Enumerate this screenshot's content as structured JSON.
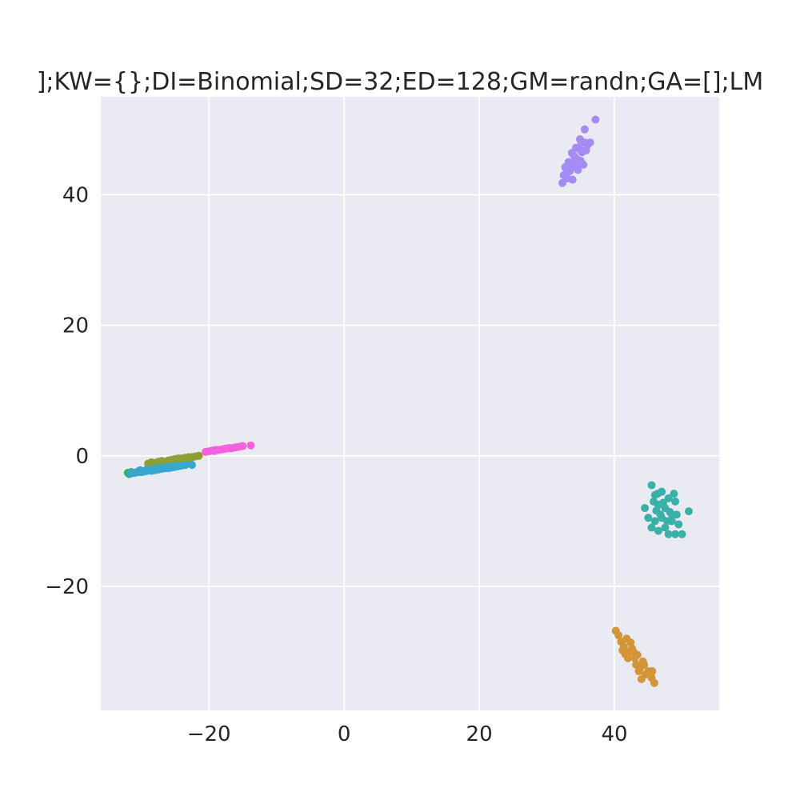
{
  "chart_data": {
    "type": "scatter",
    "title": "];KW={};DI=Binomial;SD=32;ED=128;GM=randn;GA=[];LM",
    "xlabel": "",
    "ylabel": "",
    "xlim": [
      -36,
      55.5
    ],
    "ylim": [
      -39,
      55
    ],
    "xticks": [
      -20,
      0,
      20,
      40
    ],
    "yticks": [
      -20,
      0,
      20,
      40
    ],
    "xtick_labels": [
      "−20",
      "0",
      "20",
      "40"
    ],
    "ytick_labels": [
      "−20",
      "0",
      "20",
      "40"
    ],
    "grid": true,
    "legend": "none",
    "colors": {
      "background": "#eaeaf2",
      "grid": "#ffffff",
      "text": "#262626"
    },
    "series": [
      {
        "color": "#a48cf4",
        "points": [
          [
            32.3,
            41.8
          ],
          [
            32.5,
            43.0
          ],
          [
            32.7,
            44.2
          ],
          [
            33.0,
            42.5
          ],
          [
            33.2,
            45.0
          ],
          [
            33.4,
            43.6
          ],
          [
            33.6,
            44.8
          ],
          [
            33.8,
            42.3
          ],
          [
            34.0,
            46.0
          ],
          [
            34.2,
            44.3
          ],
          [
            34.4,
            45.5
          ],
          [
            34.6,
            43.8
          ],
          [
            34.8,
            47.0
          ],
          [
            35.0,
            45.2
          ],
          [
            35.2,
            46.5
          ],
          [
            35.4,
            44.6
          ],
          [
            35.6,
            48.0
          ],
          [
            35.8,
            46.8
          ],
          [
            36.0,
            47.6
          ],
          [
            33.1,
            44.0
          ],
          [
            34.1,
            45.8
          ],
          [
            34.9,
            48.5
          ],
          [
            35.6,
            50.0
          ],
          [
            36.4,
            48.0
          ],
          [
            37.2,
            51.5
          ],
          [
            33.7,
            46.4
          ],
          [
            34.3,
            47.2
          ],
          [
            32.9,
            43.3
          ],
          [
            35.1,
            47.9
          ],
          [
            34.5,
            44.9
          ]
        ]
      },
      {
        "color": "#39b1a6",
        "points": [
          [
            45.5,
            -4.5
          ],
          [
            46.0,
            -6.0
          ],
          [
            46.5,
            -7.5
          ],
          [
            47.0,
            -5.5
          ],
          [
            47.5,
            -8.0
          ],
          [
            48.0,
            -6.5
          ],
          [
            48.5,
            -9.0
          ],
          [
            49.0,
            -7.0
          ],
          [
            49.5,
            -10.5
          ],
          [
            50.0,
            -12.0
          ],
          [
            51.0,
            -8.5
          ],
          [
            44.5,
            -8.0
          ],
          [
            45.0,
            -9.5
          ],
          [
            45.5,
            -11.0
          ],
          [
            46.0,
            -10.0
          ],
          [
            46.5,
            -11.5
          ],
          [
            47.0,
            -9.5
          ],
          [
            47.5,
            -11.0
          ],
          [
            48.0,
            -12.0
          ],
          [
            48.5,
            -10.0
          ],
          [
            49.0,
            -12.0
          ],
          [
            46.2,
            -8.4
          ],
          [
            47.2,
            -7.2
          ],
          [
            48.2,
            -8.6
          ],
          [
            49.2,
            -9.0
          ],
          [
            45.8,
            -7.0
          ],
          [
            46.8,
            -9.0
          ],
          [
            47.8,
            -10.0
          ],
          [
            48.8,
            -5.8
          ],
          [
            46.4,
            -5.8
          ]
        ]
      },
      {
        "color": "#d39537",
        "points": [
          [
            40.2,
            -26.8
          ],
          [
            40.6,
            -27.5
          ],
          [
            41.0,
            -28.5
          ],
          [
            41.4,
            -29.2
          ],
          [
            41.8,
            -28.0
          ],
          [
            42.2,
            -30.0
          ],
          [
            42.6,
            -29.5
          ],
          [
            43.0,
            -31.0
          ],
          [
            43.4,
            -30.5
          ],
          [
            43.8,
            -32.5
          ],
          [
            44.2,
            -31.5
          ],
          [
            44.6,
            -33.5
          ],
          [
            45.0,
            -33.0
          ],
          [
            45.5,
            -34.0
          ],
          [
            45.9,
            -34.8
          ],
          [
            41.2,
            -29.8
          ],
          [
            42.0,
            -31.0
          ],
          [
            42.8,
            -30.0
          ],
          [
            43.6,
            -33.0
          ],
          [
            44.4,
            -32.0
          ],
          [
            42.4,
            -28.6
          ],
          [
            43.2,
            -32.0
          ],
          [
            45.6,
            -33.0
          ],
          [
            41.6,
            -30.4
          ],
          [
            44.0,
            -34.2
          ]
        ]
      },
      {
        "color": "#f461dd",
        "points": [
          [
            -20.5,
            0.6
          ],
          [
            -20.0,
            0.7
          ],
          [
            -19.5,
            0.8
          ],
          [
            -19.0,
            0.9
          ],
          [
            -18.5,
            0.9
          ],
          [
            -18.0,
            1.0
          ],
          [
            -17.5,
            1.1
          ],
          [
            -17.0,
            1.2
          ],
          [
            -16.5,
            1.2
          ],
          [
            -16.0,
            1.3
          ],
          [
            -15.5,
            1.4
          ],
          [
            -15.0,
            1.5
          ],
          [
            -13.8,
            1.6
          ],
          [
            -19.2,
            0.75
          ],
          [
            -17.8,
            1.05
          ],
          [
            -16.8,
            1.15
          ]
        ]
      },
      {
        "color": "#8da033",
        "points": [
          [
            -29.0,
            -1.2
          ],
          [
            -28.5,
            -1.0
          ],
          [
            -28.0,
            -1.1
          ],
          [
            -27.5,
            -0.9
          ],
          [
            -27.0,
            -0.8
          ],
          [
            -26.5,
            -0.9
          ],
          [
            -26.0,
            -0.7
          ],
          [
            -25.5,
            -0.6
          ],
          [
            -25.0,
            -0.5
          ],
          [
            -24.5,
            -0.4
          ],
          [
            -24.0,
            -0.4
          ],
          [
            -23.5,
            -0.3
          ],
          [
            -23.0,
            -0.2
          ],
          [
            -22.5,
            -0.2
          ],
          [
            -22.0,
            -0.1
          ],
          [
            -21.5,
            0.0
          ],
          [
            -28.8,
            -1.5
          ],
          [
            -27.8,
            -1.3
          ],
          [
            -26.8,
            -1.2
          ],
          [
            -25.8,
            -1.0
          ],
          [
            -24.8,
            -0.9
          ],
          [
            -23.8,
            -0.7
          ],
          [
            -22.8,
            -0.6
          ]
        ]
      },
      {
        "color": "#32b166",
        "points": [
          [
            -32.0,
            -2.6
          ],
          [
            -31.5,
            -2.5
          ],
          [
            -31.0,
            -2.6
          ],
          [
            -30.5,
            -2.4
          ],
          [
            -31.8,
            -2.8
          ]
        ]
      },
      {
        "color": "#38a7d0",
        "points": [
          [
            -31.5,
            -2.7
          ],
          [
            -31.0,
            -2.6
          ],
          [
            -30.5,
            -2.5
          ],
          [
            -30.0,
            -2.5
          ],
          [
            -29.5,
            -2.4
          ],
          [
            -29.0,
            -2.3
          ],
          [
            -28.5,
            -2.3
          ],
          [
            -28.0,
            -2.2
          ],
          [
            -27.5,
            -2.1
          ],
          [
            -27.0,
            -2.0
          ],
          [
            -26.5,
            -1.9
          ],
          [
            -26.0,
            -1.9
          ],
          [
            -25.5,
            -1.8
          ],
          [
            -25.0,
            -1.7
          ],
          [
            -24.5,
            -1.6
          ],
          [
            -24.0,
            -1.5
          ],
          [
            -23.5,
            -1.4
          ],
          [
            -22.5,
            -1.4
          ],
          [
            -30.2,
            -2.2
          ],
          [
            -29.2,
            -2.1
          ],
          [
            -28.2,
            -2.0
          ],
          [
            -27.2,
            -1.8
          ],
          [
            -26.2,
            -1.7
          ],
          [
            -25.2,
            -1.5
          ]
        ]
      }
    ]
  }
}
